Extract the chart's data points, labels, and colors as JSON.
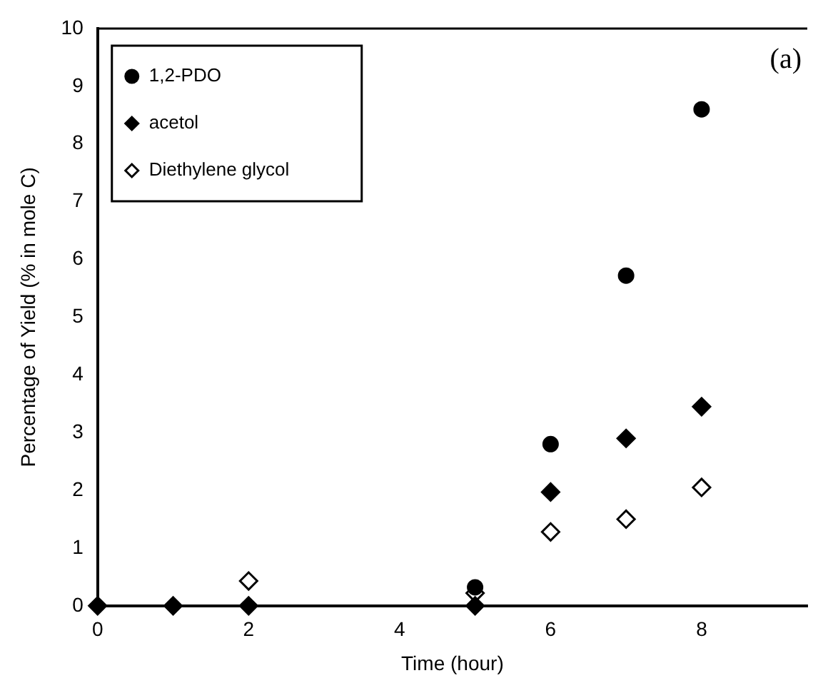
{
  "chart_data": {
    "type": "scatter",
    "xlabel": "Time (hour)",
    "ylabel": "Percentage of Yield (% in mole C)",
    "annotations": [
      "(a)"
    ],
    "xlim": [
      0,
      9.4
    ],
    "xticks": [
      0,
      2,
      4,
      6,
      8
    ],
    "ylim": [
      0,
      10
    ],
    "yticks": [
      0,
      1,
      2,
      3,
      4,
      5,
      6,
      7,
      8,
      9,
      10
    ],
    "grid": false,
    "legend": "top left",
    "series": [
      {
        "name": "1,2-PDO",
        "color": "#000000",
        "marker": "circle",
        "x": [
          5,
          6,
          7,
          8
        ],
        "values": [
          0.32,
          2.8,
          5.72,
          8.6
        ]
      },
      {
        "name": "acetol",
        "color": "#000000",
        "marker": "diamond",
        "x": [
          0,
          1,
          2,
          5,
          6,
          7,
          8
        ],
        "values": [
          0,
          0,
          0,
          0,
          1.97,
          2.9,
          3.45
        ]
      },
      {
        "name": "Diethylene glycol",
        "color": "#ffffff",
        "marker": "diamond",
        "x": [
          2,
          5,
          6,
          7,
          8
        ],
        "values": [
          0.43,
          0.22,
          1.28,
          1.5,
          2.05
        ]
      }
    ]
  }
}
